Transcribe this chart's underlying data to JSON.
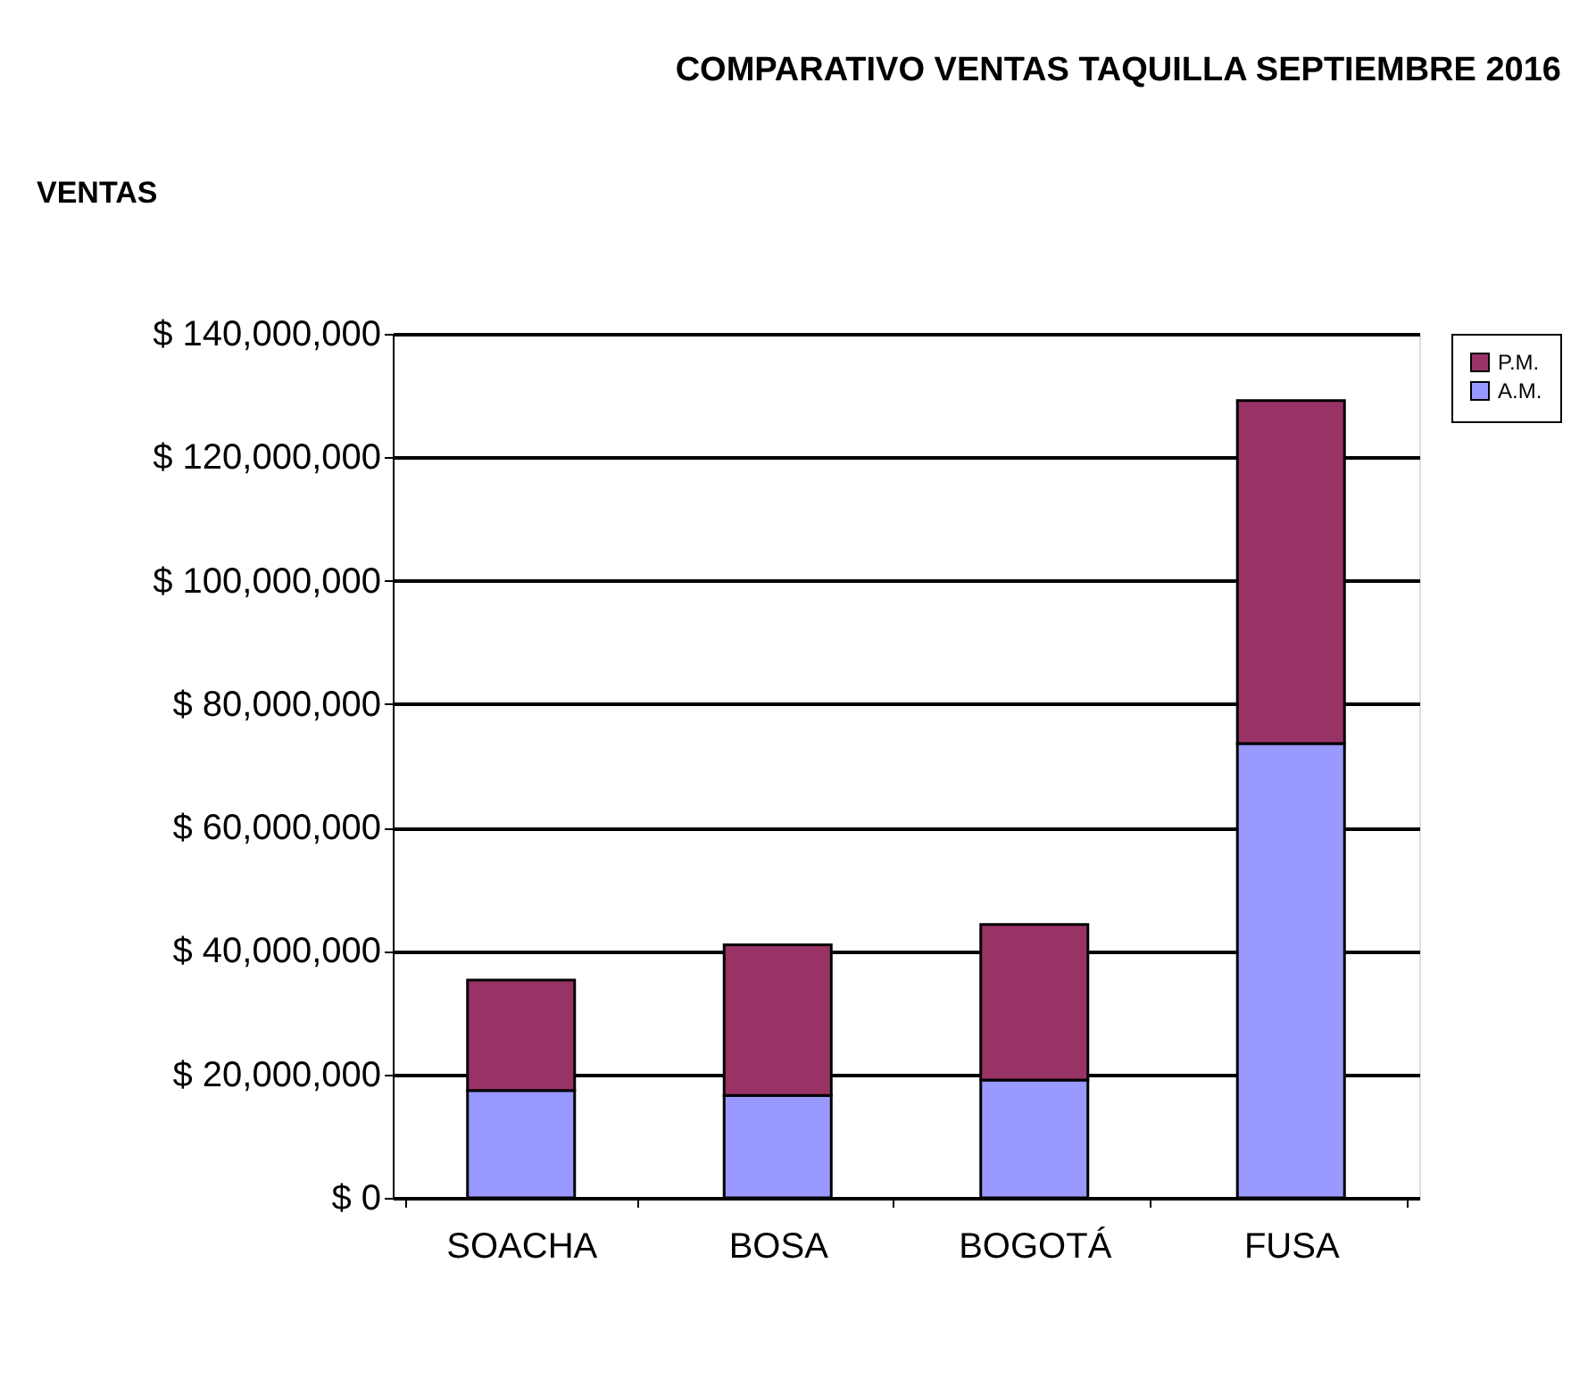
{
  "chart_data": {
    "type": "bar",
    "title": "COMPARATIVO VENTAS TAQUILLA  SEPTIEMBRE 2016",
    "ylabel": "VENTAS",
    "categories": [
      "SOACHA",
      "BOSA",
      "BOGOTÁ",
      "FUSA"
    ],
    "stacked": true,
    "series": [
      {
        "name": "A.M.",
        "color": "#9999ff",
        "values": [
          17400000,
          16600000,
          19100000,
          73600000
        ]
      },
      {
        "name": "P.M.",
        "color": "#993366",
        "values": [
          17900000,
          24400000,
          25200000,
          55600000
        ]
      }
    ],
    "ylim": [
      0,
      140000000
    ],
    "yticks": [
      {
        "value": 0,
        "label": "$ 0"
      },
      {
        "value": 20000000,
        "label": "$ 20,000,000"
      },
      {
        "value": 40000000,
        "label": "$ 40,000,000"
      },
      {
        "value": 60000000,
        "label": "$ 60,000,000"
      },
      {
        "value": 80000000,
        "label": "$ 80,000,000"
      },
      {
        "value": 100000000,
        "label": "$ 100,000,000"
      },
      {
        "value": 120000000,
        "label": "$ 120,000,000"
      },
      {
        "value": 140000000,
        "label": "$ 140,000,000"
      }
    ],
    "grid": "y",
    "legend": "right"
  }
}
